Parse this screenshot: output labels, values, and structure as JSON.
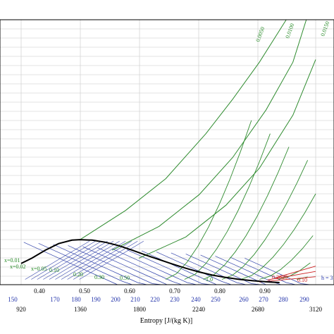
{
  "chart_data": {
    "type": "line",
    "title": "",
    "xlabel": "Entropy [J/(kg K)]",
    "ylabel": "",
    "grid": true,
    "axes": {
      "x_primary": {
        "range": [
          920,
          3120
        ],
        "ticks": [
          "920",
          "1360",
          "1800",
          "2240",
          "2680",
          "3120"
        ]
      },
      "x_secondary": {
        "range": [
          0.4,
          0.9
        ],
        "ticks": [
          "0.40",
          "0.50",
          "0.60",
          "0.70",
          "0.80",
          "0.90"
        ]
      },
      "x_tertiary": {
        "ticks": [
          "150",
          "170",
          "180",
          "190",
          "200",
          "210",
          "220",
          "230",
          "240",
          "250",
          "260",
          "270",
          "280",
          "290"
        ]
      }
    },
    "saturation_dome": {
      "s": [
        920,
        1000,
        1100,
        1200,
        1300,
        1360,
        1450,
        1550,
        1650,
        1750,
        1850,
        1950,
        2050,
        2150,
        2250,
        2350,
        2450,
        2550,
        2650,
        2750,
        2850
      ],
      "y": [
        0.08,
        0.1,
        0.13,
        0.155,
        0.168,
        0.17,
        0.168,
        0.16,
        0.147,
        0.13,
        0.112,
        0.095,
        0.078,
        0.062,
        0.048,
        0.036,
        0.027,
        0.02,
        0.015,
        0.011,
        0.008
      ]
    },
    "specific_volume_lines": {
      "labels": [
        "0.0050",
        "0.0100",
        "0.0150"
      ],
      "series": [
        {
          "name": "0.0050",
          "s": [
            1360,
            1700,
            2000,
            2300,
            2500,
            2700,
            2900
          ],
          "y": [
            0.17,
            0.28,
            0.4,
            0.57,
            0.7,
            0.84,
            1.0
          ]
        },
        {
          "name": "0.0100",
          "s": [
            1600,
            1950,
            2250,
            2500,
            2750,
            2950,
            3050
          ],
          "y": [
            0.13,
            0.22,
            0.34,
            0.48,
            0.66,
            0.84,
            1.0
          ]
        },
        {
          "name": "0.0150",
          "s": [
            1800,
            2150,
            2450,
            2700,
            2950,
            3120
          ],
          "y": [
            0.1,
            0.18,
            0.3,
            0.44,
            0.64,
            0.85
          ]
        }
      ]
    },
    "quality_labels": [
      "x=0.01",
      "x=0.02",
      "x=0.05",
      "0.10",
      "0.20",
      "0.30",
      "0.50",
      "1.0"
    ],
    "annotations": [
      "0.2620",
      "0.10",
      "h = 3"
    ]
  },
  "colors": {
    "green_lines": "#2e8b2e",
    "blue_lines": "#3344aa",
    "dome": "#000000",
    "grid": "#c8c8c8",
    "red_lines": "#cc2222"
  }
}
